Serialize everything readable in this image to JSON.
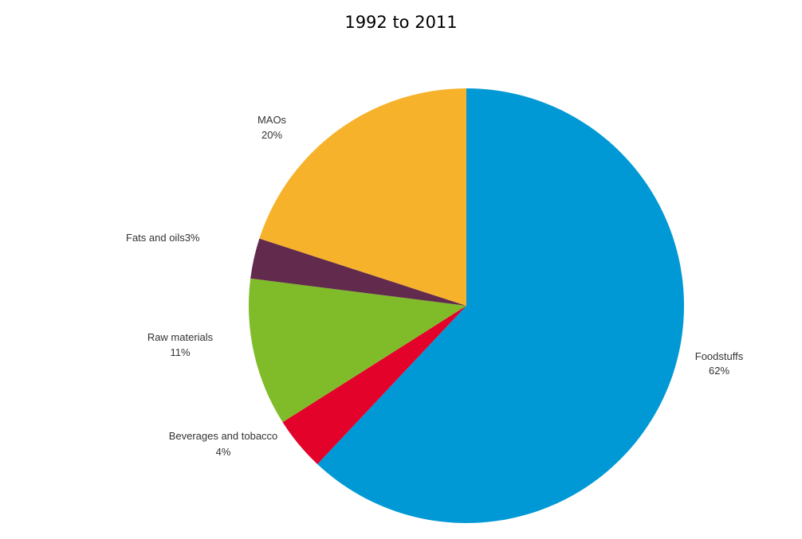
{
  "chart_data": {
    "type": "pie",
    "title": "1992 to 2011",
    "slices": [
      {
        "name": "Foodstuffs",
        "value": 62,
        "label": "62%",
        "color": "#0099d5"
      },
      {
        "name": "Beverages and tobacco",
        "value": 4,
        "label": "4%",
        "color": "#e2022a"
      },
      {
        "name": "Raw materials",
        "value": 11,
        "label": "11%",
        "color": "#80bc29"
      },
      {
        "name": "Fats and oils",
        "value": 3,
        "label": "3%",
        "color": "#622a4d"
      },
      {
        "name": "MAOs",
        "value": 20,
        "label": "20%",
        "color": "#f7b22b"
      }
    ],
    "start_angle": "12 o'clock",
    "direction": "clockwise",
    "legend": "none"
  }
}
